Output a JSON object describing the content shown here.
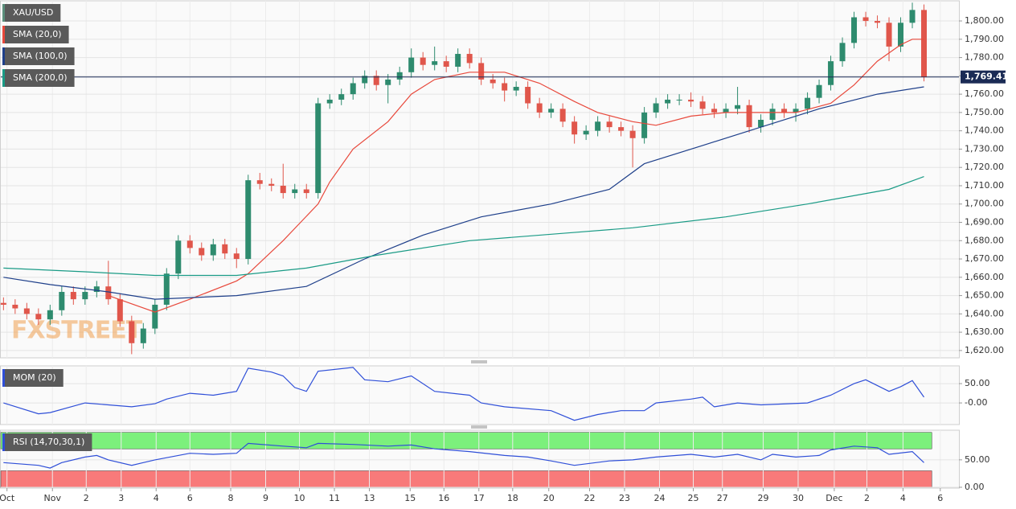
{
  "chart_data": [
    {
      "type": "candlestick",
      "title": "XAU/USD",
      "watermark": "FXSTREET",
      "up_color": "#2e8b6e",
      "down_color": "#e0564b",
      "open": [
        1646,
        1645,
        1643,
        1640,
        1637,
        1642,
        1652,
        1648,
        1652,
        1655,
        1648,
        1636,
        1624,
        1632,
        1645,
        1662,
        1680,
        1676,
        1672,
        1678,
        1673,
        1670,
        1713,
        1711,
        1710,
        1706,
        1708,
        1706,
        1755,
        1757,
        1760,
        1766,
        1770,
        1765,
        1768,
        1772,
        1780,
        1776,
        1778,
        1775,
        1782,
        1777,
        1768,
        1766,
        1762,
        1764,
        1755,
        1750,
        1752,
        1745,
        1738,
        1740,
        1745,
        1742,
        1740,
        1736,
        1750,
        1755,
        1757,
        1757,
        1756,
        1752,
        1750,
        1752,
        1754,
        1742,
        1746,
        1752,
        1750,
        1752,
        1758,
        1765,
        1778,
        1788,
        1802,
        1800,
        1799,
        1786,
        1799,
        1806
      ],
      "high": [
        1649,
        1648,
        1646,
        1643,
        1645,
        1655,
        1655,
        1655,
        1658,
        1669,
        1651,
        1639,
        1635,
        1648,
        1665,
        1683,
        1683,
        1679,
        1681,
        1681,
        1676,
        1716,
        1717,
        1714,
        1722,
        1711,
        1711,
        1758,
        1760,
        1763,
        1769,
        1773,
        1773,
        1771,
        1775,
        1785,
        1783,
        1786,
        1781,
        1785,
        1785,
        1780,
        1771,
        1769,
        1767,
        1767,
        1758,
        1755,
        1755,
        1748,
        1743,
        1748,
        1748,
        1745,
        1743,
        1753,
        1758,
        1760,
        1760,
        1761,
        1759,
        1755,
        1755,
        1764,
        1757,
        1749,
        1755,
        1755,
        1755,
        1761,
        1768,
        1781,
        1791,
        1805,
        1805,
        1803,
        1802,
        1802,
        1810,
        1809
      ],
      "low": [
        1642,
        1640,
        1637,
        1634,
        1634,
        1639,
        1645,
        1645,
        1649,
        1645,
        1633,
        1618,
        1621,
        1629,
        1642,
        1659,
        1673,
        1669,
        1669,
        1670,
        1665,
        1667,
        1708,
        1707,
        1703,
        1703,
        1703,
        1703,
        1752,
        1754,
        1757,
        1763,
        1762,
        1755,
        1765,
        1769,
        1773,
        1773,
        1772,
        1772,
        1774,
        1765,
        1763,
        1756,
        1759,
        1752,
        1747,
        1747,
        1742,
        1733,
        1735,
        1737,
        1739,
        1737,
        1720,
        1733,
        1747,
        1752,
        1754,
        1753,
        1749,
        1747,
        1747,
        1749,
        1739,
        1739,
        1743,
        1747,
        1745,
        1749,
        1755,
        1762,
        1775,
        1785,
        1797,
        1796,
        1778,
        1783,
        1796,
        1767
      ],
      "close": [
        1645,
        1643,
        1640,
        1637,
        1642,
        1652,
        1648,
        1652,
        1655,
        1648,
        1636,
        1624,
        1632,
        1645,
        1662,
        1680,
        1676,
        1672,
        1678,
        1673,
        1670,
        1713,
        1711,
        1710,
        1706,
        1708,
        1706,
        1755,
        1757,
        1760,
        1766,
        1770,
        1765,
        1768,
        1772,
        1780,
        1776,
        1778,
        1775,
        1782,
        1777,
        1768,
        1766,
        1762,
        1764,
        1755,
        1750,
        1752,
        1745,
        1738,
        1740,
        1745,
        1742,
        1740,
        1736,
        1750,
        1755,
        1757,
        1757,
        1756,
        1752,
        1750,
        1752,
        1754,
        1742,
        1746,
        1752,
        1750,
        1752,
        1758,
        1765,
        1778,
        1788,
        1802,
        1800,
        1799,
        1786,
        1799,
        1806,
        1769.41
      ],
      "series": [
        {
          "name": "SMA (20,0)",
          "color": "#e8483b",
          "x": [
            9,
            13,
            16,
            20,
            21,
            24,
            27,
            28,
            30,
            33,
            35,
            37,
            40,
            43,
            46,
            49,
            51,
            54,
            56,
            59,
            62,
            65,
            68,
            71,
            73,
            75,
            77,
            78,
            79
          ],
          "values": [
            1650,
            1641,
            1648,
            1658,
            1662,
            1680,
            1700,
            1712,
            1730,
            1745,
            1760,
            1768,
            1772,
            1772,
            1766,
            1756,
            1750,
            1745,
            1743,
            1748,
            1750,
            1750,
            1750,
            1755,
            1765,
            1778,
            1787,
            1790,
            1790
          ]
        },
        {
          "name": "SMA (100,0)",
          "color": "#1e3f8a",
          "x": [
            0,
            4,
            9,
            13,
            20,
            26,
            31,
            36,
            41,
            47,
            52,
            55,
            60,
            65,
            70,
            75,
            79
          ],
          "values": [
            1660,
            1656,
            1652,
            1648,
            1650,
            1655,
            1670,
            1683,
            1693,
            1700,
            1708,
            1722,
            1732,
            1742,
            1752,
            1760,
            1764
          ]
        },
        {
          "name": "SMA (200,0)",
          "color": "#1a9b86",
          "x": [
            0,
            7,
            13,
            20,
            26,
            32,
            40,
            48,
            54,
            62,
            69,
            76,
            79
          ],
          "values": [
            1665,
            1663,
            1661,
            1661,
            1665,
            1672,
            1680,
            1684,
            1687,
            1693,
            1700,
            1708,
            1715
          ]
        }
      ],
      "last_price": {
        "value": 1769.41,
        "label": "1,769.41"
      },
      "xlim": [
        -0.3,
        82
      ],
      "xticks": [
        {
          "value": 0.3,
          "label": "Oct"
        },
        {
          "value": 4.2,
          "label": "Nov"
        },
        {
          "value": 7.1,
          "label": "2"
        },
        {
          "value": 10.1,
          "label": "3"
        },
        {
          "value": 13.1,
          "label": "4"
        },
        {
          "value": 16.0,
          "label": "6"
        },
        {
          "value": 19.5,
          "label": "8"
        },
        {
          "value": 22.5,
          "label": "9"
        },
        {
          "value": 25.4,
          "label": "10"
        },
        {
          "value": 28.4,
          "label": "11"
        },
        {
          "value": 31.4,
          "label": "13"
        },
        {
          "value": 34.9,
          "label": "15"
        },
        {
          "value": 37.8,
          "label": "16"
        },
        {
          "value": 40.8,
          "label": "17"
        },
        {
          "value": 43.7,
          "label": "18"
        },
        {
          "value": 46.8,
          "label": "20"
        },
        {
          "value": 50.3,
          "label": "22"
        },
        {
          "value": 53.3,
          "label": "23"
        },
        {
          "value": 56.3,
          "label": "24"
        },
        {
          "value": 59.2,
          "label": "25"
        },
        {
          "value": 61.7,
          "label": "27"
        },
        {
          "value": 65.2,
          "label": "29"
        },
        {
          "value": 68.2,
          "label": "30"
        },
        {
          "value": 71.3,
          "label": "Dec"
        },
        {
          "value": 74.1,
          "label": "2"
        },
        {
          "value": 77.2,
          "label": "4"
        },
        {
          "value": 80.4,
          "label": "6"
        }
      ],
      "ylim": [
        1616,
        1811
      ],
      "yticks": [
        {
          "value": 1620,
          "label": "1,620.00"
        },
        {
          "value": 1630,
          "label": "1,630.00"
        },
        {
          "value": 1640,
          "label": "1,640.00"
        },
        {
          "value": 1650,
          "label": "1,650.00"
        },
        {
          "value": 1660,
          "label": "1,660.00"
        },
        {
          "value": 1670,
          "label": "1,670.00"
        },
        {
          "value": 1680,
          "label": "1,680.00"
        },
        {
          "value": 1690,
          "label": "1,690.00"
        },
        {
          "value": 1700,
          "label": "1,700.00"
        },
        {
          "value": 1710,
          "label": "1,710.00"
        },
        {
          "value": 1720,
          "label": "1,720.00"
        },
        {
          "value": 1730,
          "label": "1,730.00"
        },
        {
          "value": 1740,
          "label": "1,740.00"
        },
        {
          "value": 1750,
          "label": "1,750.00"
        },
        {
          "value": 1760,
          "label": "1,760.00"
        },
        {
          "value": 1770,
          "label": "1,770.00"
        },
        {
          "value": 1780,
          "label": "1,780.00"
        },
        {
          "value": 1790,
          "label": "1,790.00"
        },
        {
          "value": 1800,
          "label": "1,800.00"
        }
      ],
      "grid": true
    },
    {
      "type": "line",
      "title": "MOM (20)",
      "series": [
        {
          "color": "#2f4fd8",
          "x": [
            0,
            3,
            4,
            7,
            11,
            13,
            14,
            16,
            18,
            20,
            21,
            23,
            24,
            25,
            26,
            27,
            30,
            31,
            33,
            35,
            37,
            40,
            41,
            43,
            47,
            49,
            51,
            53,
            55,
            56,
            59,
            60,
            61,
            63,
            65,
            69,
            71,
            73,
            74,
            76,
            77,
            78,
            79
          ],
          "values": [
            0,
            -28,
            -25,
            0,
            -10,
            -2,
            10,
            25,
            20,
            30,
            90,
            80,
            70,
            40,
            30,
            82,
            92,
            60,
            55,
            70,
            30,
            20,
            0,
            -10,
            -20,
            -45,
            -30,
            -20,
            -20,
            0,
            10,
            15,
            -10,
            0,
            -5,
            0,
            20,
            50,
            60,
            30,
            42,
            58,
            15
          ]
        }
      ],
      "ylim": [
        -56,
        96
      ],
      "yticks": [
        {
          "value": 0,
          "label": "-0.00"
        },
        {
          "value": 50,
          "label": "50.00"
        }
      ],
      "grid": true
    },
    {
      "type": "line",
      "title": "RSI (14,70,30,1)",
      "bands": [
        {
          "from": 70,
          "to": 100,
          "color": "#7cf07c"
        },
        {
          "from": 0,
          "to": 30,
          "color": "#f87a7a"
        }
      ],
      "series": [
        {
          "color": "#2f4fd8",
          "x": [
            0,
            3,
            4,
            5,
            7,
            8,
            9,
            11,
            12,
            13,
            16,
            18,
            20,
            21,
            24,
            26,
            27,
            30,
            33,
            35,
            37,
            40,
            43,
            45,
            47,
            49,
            52,
            54,
            56,
            59,
            61,
            63,
            65,
            66,
            68,
            70,
            71,
            73,
            75,
            76,
            78,
            79
          ],
          "values": [
            45,
            40,
            35,
            45,
            55,
            58,
            50,
            40,
            45,
            50,
            62,
            60,
            62,
            80,
            75,
            72,
            80,
            78,
            75,
            77,
            70,
            65,
            58,
            55,
            48,
            40,
            48,
            50,
            55,
            60,
            55,
            60,
            50,
            60,
            55,
            58,
            68,
            75,
            72,
            60,
            65,
            45
          ]
        }
      ],
      "ylim": [
        -1.5,
        104
      ],
      "yticks": [
        {
          "value": 0,
          "label": "0.00"
        },
        {
          "value": 50,
          "label": "50.00"
        }
      ],
      "grid": true
    }
  ]
}
